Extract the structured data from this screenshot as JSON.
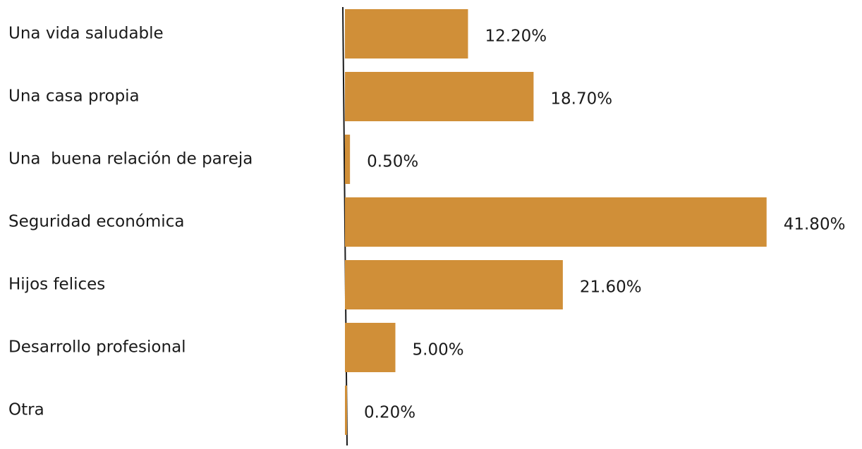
{
  "chart_data": {
    "type": "hbar",
    "categories": [
      "Una vida saludable",
      "Una casa propia",
      "Una  buena relación de pareja",
      "Seguridad económica",
      "Hijos felices",
      "Desarrollo profesional",
      "Otra"
    ],
    "values": [
      12.2,
      18.7,
      0.5,
      41.8,
      21.6,
      5.0,
      0.2
    ],
    "value_labels": [
      "12.20%",
      "18.70%",
      "0.50%",
      "41.80%",
      "21.60%",
      "5.00%",
      "0.20%"
    ],
    "color": "#d08f38",
    "xlim": [
      0,
      42
    ]
  }
}
